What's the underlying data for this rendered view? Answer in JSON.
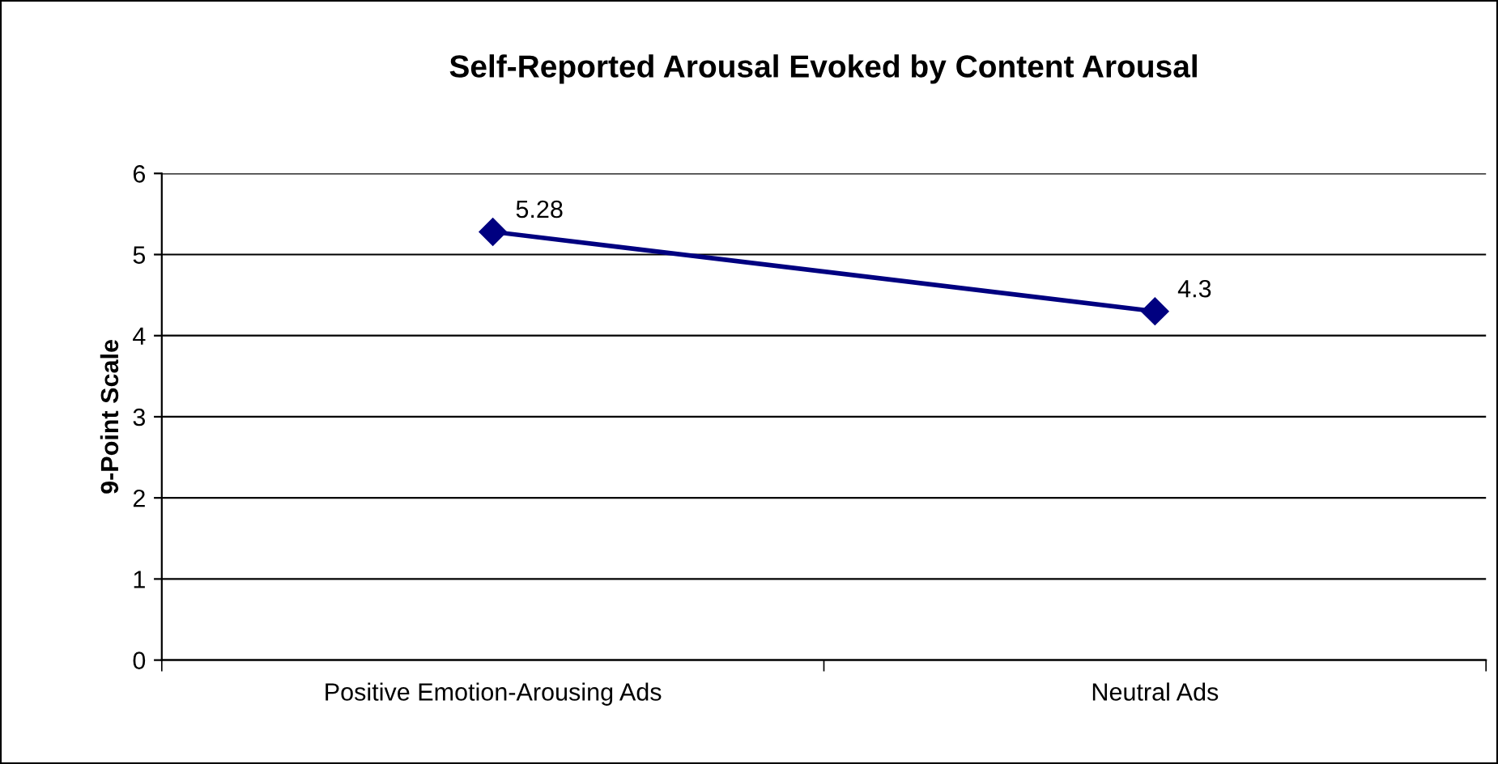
{
  "chart_data": {
    "type": "line",
    "title": "Self-Reported Arousal Evoked by Content Arousal",
    "ylabel": "9-Point Scale",
    "categories": [
      "Positive Emotion-Arousing Ads",
      "Neutral Ads"
    ],
    "series": [
      {
        "color": "#000080",
        "values": [
          5.28,
          4.3
        ]
      }
    ],
    "ylim": [
      0,
      6
    ],
    "yticks": [
      0,
      1,
      2,
      3,
      4,
      5,
      6
    ],
    "grid": "y",
    "marker": "diamond",
    "line_style": "solid",
    "data_labels": true,
    "legend": false
  }
}
